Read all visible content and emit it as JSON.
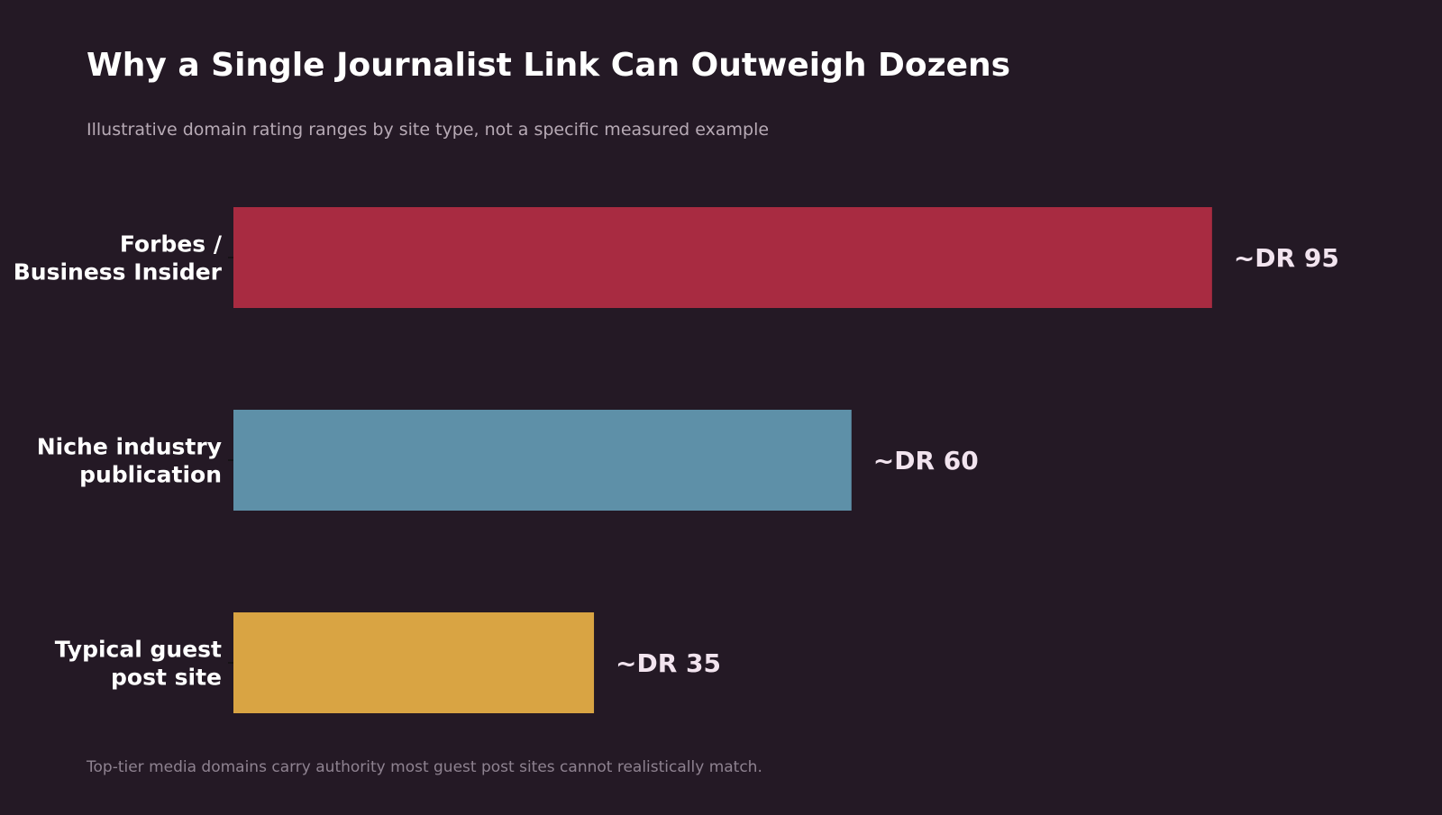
{
  "title": "Why a Single Journalist Link Can Outweigh Dozens",
  "subtitle": "Illustrative domain rating ranges by site type, not a specific measured example",
  "footnote": "Top-tier media domains carry authority most guest post sites cannot realistically match.",
  "chart_data": {
    "type": "bar",
    "orientation": "horizontal",
    "title": "Why a Single Journalist Link Can Outweigh Dozens",
    "subtitle": "Illustrative domain rating ranges by site type, not a specific measured example",
    "categories": [
      [
        "Forbes /",
        "Business Insider"
      ],
      [
        "Niche industry",
        "publication"
      ],
      [
        "Typical guest",
        "post site"
      ]
    ],
    "values": [
      95,
      60,
      35
    ],
    "data_labels": [
      "~DR 95",
      "~DR 60",
      "~DR 35"
    ],
    "colors": [
      "#a82b41",
      "#5e90a8",
      "#d9a443"
    ],
    "xlim": [
      0,
      100
    ],
    "grid": false,
    "legend": "none"
  }
}
